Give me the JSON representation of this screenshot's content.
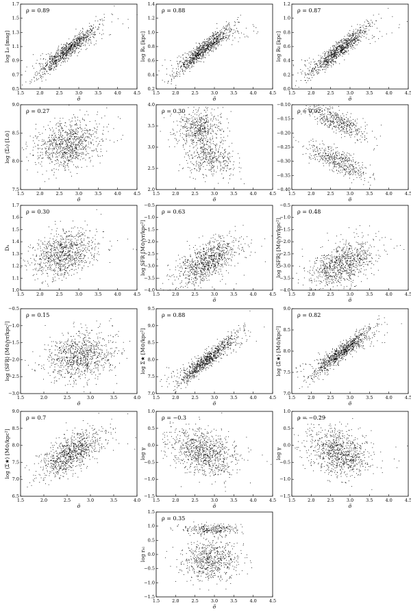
{
  "figure": {
    "background": "#ffffff",
    "point_color": "#000000",
    "panels": [
      {
        "rho": "ρ = 0.89",
        "xlabel": "σ̃",
        "ylabel": "log L₀ [mag]",
        "xticks": [
          "1.5",
          "2.0",
          "2.5",
          "3.0",
          "3.5",
          "4.0",
          "4.5"
        ],
        "yticks": [
          "0.5",
          "0.7",
          "0.9",
          "1.1",
          "1.3",
          "1.5",
          "1.7"
        ]
      },
      {
        "rho": "ρ = 0.88",
        "xlabel": "σ̃",
        "ylabel": "log Rₐ [kpc]",
        "xticks": [
          "1.5",
          "2.0",
          "2.5",
          "3.0",
          "3.5",
          "4.0",
          "4.5"
        ],
        "yticks": [
          "0.2",
          "0.4",
          "0.6",
          "0.8",
          "1.0",
          "1.2",
          "1.4"
        ]
      },
      {
        "rho": "ρ = 0.87",
        "xlabel": "σ̃",
        "ylabel": "log R₀ [kpc]",
        "xticks": [
          "1.5",
          "2.0",
          "2.5",
          "3.0",
          "3.5",
          "4.0",
          "4.5"
        ],
        "yticks": [
          "0.0",
          "0.2",
          "0.4",
          "0.6",
          "0.8",
          "1.0",
          "1.2"
        ]
      },
      {
        "rho": "ρ = 0.27",
        "xlabel": "σ̃",
        "ylabel": "log ⟨Σ₀⟩ [L⊙]",
        "xticks": [
          "1.5",
          "2.0",
          "2.5",
          "3.0",
          "3.5",
          "4.0",
          "4.5"
        ],
        "yticks": [
          "7.5",
          "8.0",
          "8.5",
          "9.0"
        ]
      },
      {
        "rho": "ρ = 0.30",
        "xlabel": "σ̃",
        "ylabel": "",
        "xticks": [
          "1.5",
          "2.0",
          "2.5",
          "3.0",
          "3.5",
          "4.0",
          "4.5"
        ],
        "yticks": [
          "2.0",
          "2.5",
          "3.0",
          "3.5",
          "4.0"
        ]
      },
      {
        "rho": "ρ = 0.02",
        "xlabel": "σ̃",
        "ylabel": "",
        "xticks": [
          "1.5",
          "2.0",
          "2.5",
          "3.0",
          "3.5",
          "4.0",
          "4.5"
        ],
        "yticks": [
          "−0.40",
          "−0.35",
          "−0.30",
          "−0.25",
          "−0.20",
          "−0.15",
          "−0.10"
        ]
      },
      {
        "rho": "ρ = 0.30",
        "xlabel": "",
        "ylabel": "Dₙ",
        "xticks": [
          "1.5",
          "2.0",
          "2.5",
          "3.0",
          "3.5",
          "4.0",
          "4.5"
        ],
        "yticks": [
          "1.0",
          "1.1",
          "1.2",
          "1.3",
          "1.4",
          "1.5",
          "1.6",
          "1.7"
        ]
      },
      {
        "rho": "ρ = 0.63",
        "xlabel": "σ̃",
        "ylabel": "log SFR [M⊙/yr/kpc²]",
        "xticks": [
          "1.5",
          "2.0",
          "2.5",
          "3.0",
          "3.5",
          "4.0",
          "4.5"
        ],
        "yticks": [
          "−4.0",
          "−3.5",
          "−3.0",
          "−2.5",
          "−2.0",
          "−1.5",
          "−1.0",
          "−0.5"
        ]
      },
      {
        "rho": "ρ = 0.48",
        "xlabel": "σ̃",
        "ylabel": "log ⟨SFR⟩ [M⊙/yr/kpc²]",
        "xticks": [
          "1.5",
          "2.0",
          "2.5",
          "3.0",
          "3.5",
          "4.0",
          "4.5"
        ],
        "yticks": [
          "−4.0",
          "−3.5",
          "−3.0",
          "−2.5",
          "−2.0",
          "−1.5",
          "−1.0",
          "−0.5"
        ]
      },
      {
        "rho": "ρ = 0.15",
        "xlabel": "σ̃",
        "ylabel": "log ⟨SFR⟩ [M⊙/yr/kpc²]",
        "xticks": [
          "1.5",
          "2.0",
          "2.5",
          "3.0",
          "3.5",
          "4.0"
        ],
        "yticks": [
          "−3.0",
          "−2.5",
          "−2.0",
          "−1.5",
          "−1.0",
          "−0.5"
        ]
      },
      {
        "rho": "ρ = 0.88",
        "xlabel": "σ̃",
        "ylabel": "log Σ★ [M⊙/kpc²]",
        "xticks": [
          "1.5",
          "2.0",
          "2.5",
          "3.0",
          "3.5",
          "4.0",
          "4.5"
        ],
        "yticks": [
          "7.0",
          "7.5",
          "8.0",
          "8.5",
          "9.0",
          "9.5"
        ]
      },
      {
        "rho": "ρ = 0.82",
        "xlabel": "σ̃",
        "ylabel": "log ⟨Σ★⟩ [M⊙/kpc²]",
        "xticks": [
          "1.5",
          "2.0",
          "2.5",
          "3.0",
          "3.5",
          "4.0",
          "4.5"
        ],
        "yticks": [
          "7.0",
          "7.5",
          "8.0",
          "8.5",
          "9.0"
        ]
      },
      {
        "rho": "ρ = 0.7",
        "xlabel": "σ̃",
        "ylabel": "log ⟨Σ★⟩ [M⊙/kpc²]",
        "xticks": [
          "1.5",
          "2.0",
          "2.5",
          "3.0",
          "3.5",
          "4.0"
        ],
        "yticks": [
          "6.5",
          "7.0",
          "7.5",
          "8.0",
          "8.5",
          "9.0"
        ]
      },
      {
        "rho": "ρ = −0.3",
        "xlabel": "σ̃",
        "ylabel": "log γ",
        "xticks": [
          "1.5",
          "2.0",
          "2.5",
          "3.0",
          "3.5",
          "4.0",
          "4.5"
        ],
        "yticks": [
          "−1.5",
          "−1.0",
          "−0.5",
          "0.0",
          "0.5",
          "1.0"
        ]
      },
      {
        "rho": "ρ = −0.29",
        "xlabel": "σ̃",
        "ylabel": "log γ",
        "xticks": [
          "1.5",
          "2.0",
          "2.5",
          "3.0",
          "3.5",
          "4.0",
          "4.5"
        ],
        "yticks": [
          "−1.5",
          "−1.0",
          "−0.5",
          "0.0",
          "0.5",
          "1.0"
        ]
      },
      {
        "rho": "ρ = 0.35",
        "xlabel": "σ̃",
        "ylabel": "log rₑₗ",
        "xticks": [
          "1.5",
          "2.0",
          "2.5",
          "3.0",
          "3.5",
          "4.0",
          "4.5"
        ],
        "yticks": [
          "−1.5",
          "−1.0",
          "−0.5",
          "0.0",
          "0.5",
          "1.0",
          "1.5"
        ]
      }
    ]
  },
  "chart_data": [
    {
      "type": "scatter",
      "panel": 1,
      "rho": 0.89,
      "xlim": [
        1.5,
        4.5
      ],
      "ylim": [
        0.5,
        1.7
      ],
      "trend": "positive, tight",
      "center": [
        2.7,
        1.05
      ]
    },
    {
      "type": "scatter",
      "panel": 2,
      "rho": 0.88,
      "xlim": [
        1.5,
        4.5
      ],
      "ylim": [
        0.2,
        1.4
      ],
      "trend": "positive, tight",
      "center": [
        2.7,
        0.75
      ]
    },
    {
      "type": "scatter",
      "panel": 3,
      "rho": 0.87,
      "xlim": [
        1.5,
        4.5
      ],
      "ylim": [
        0.0,
        1.2
      ],
      "trend": "positive, tight",
      "center": [
        2.7,
        0.55
      ]
    },
    {
      "type": "scatter",
      "panel": 4,
      "rho": 0.27,
      "xlim": [
        1.5,
        4.5
      ],
      "ylim": [
        7.5,
        9.0
      ],
      "trend": "weak positive",
      "center": [
        2.7,
        8.3
      ]
    },
    {
      "type": "scatter",
      "panel": 5,
      "rho": 0.3,
      "xlim": [
        1.5,
        4.5
      ],
      "ylim": [
        2.0,
        4.0
      ],
      "trend": "two clumps, falling tail",
      "center": [
        2.7,
        3.3
      ]
    },
    {
      "type": "scatter",
      "panel": 6,
      "rho": 0.02,
      "xlim": [
        1.5,
        4.5
      ],
      "ylim": [
        -0.4,
        -0.1
      ],
      "trend": "two declining bands",
      "center": [
        2.7,
        -0.22
      ]
    },
    {
      "type": "scatter",
      "panel": 7,
      "rho": 0.3,
      "xlim": [
        1.5,
        4.5
      ],
      "ylim": [
        1.0,
        1.7
      ],
      "trend": "weak positive",
      "center": [
        2.6,
        1.3
      ]
    },
    {
      "type": "scatter",
      "panel": 8,
      "rho": 0.63,
      "xlim": [
        1.5,
        4.5
      ],
      "ylim": [
        -4.0,
        -0.5
      ],
      "trend": "positive",
      "center": [
        2.8,
        -2.8
      ]
    },
    {
      "type": "scatter",
      "panel": 9,
      "rho": 0.48,
      "xlim": [
        1.5,
        4.5
      ],
      "ylim": [
        -4.0,
        -0.5
      ],
      "trend": "positive",
      "center": [
        2.8,
        -2.9
      ]
    },
    {
      "type": "scatter",
      "panel": 10,
      "rho": 0.15,
      "xlim": [
        1.5,
        4.0
      ],
      "ylim": [
        -3.0,
        -0.5
      ],
      "trend": "weak positive",
      "center": [
        2.8,
        -1.9
      ]
    },
    {
      "type": "scatter",
      "panel": 11,
      "rho": 0.88,
      "xlim": [
        1.5,
        4.5
      ],
      "ylim": [
        7.0,
        9.5
      ],
      "trend": "positive",
      "center": [
        2.8,
        8.0
      ]
    },
    {
      "type": "scatter",
      "panel": 12,
      "rho": 0.82,
      "xlim": [
        1.5,
        4.5
      ],
      "ylim": [
        7.0,
        9.0
      ],
      "trend": "positive",
      "center": [
        2.8,
        8.0
      ]
    },
    {
      "type": "scatter",
      "panel": 13,
      "rho": 0.7,
      "xlim": [
        1.5,
        4.0
      ],
      "ylim": [
        6.5,
        9.0
      ],
      "trend": "positive",
      "center": [
        2.6,
        7.8
      ]
    },
    {
      "type": "scatter",
      "panel": 14,
      "rho": -0.3,
      "xlim": [
        1.5,
        4.5
      ],
      "ylim": [
        -1.5,
        1.0
      ],
      "trend": "weak negative",
      "center": [
        2.7,
        -0.2
      ]
    },
    {
      "type": "scatter",
      "panel": 15,
      "rho": -0.29,
      "xlim": [
        1.5,
        4.5
      ],
      "ylim": [
        -1.5,
        1.0
      ],
      "trend": "weak negative",
      "center": [
        2.7,
        -0.2
      ]
    },
    {
      "type": "scatter",
      "panel": 16,
      "rho": 0.35,
      "xlim": [
        1.5,
        4.5
      ],
      "ylim": [
        -1.5,
        1.5
      ],
      "trend": "two groups",
      "center": [
        2.9,
        0.0
      ]
    }
  ]
}
